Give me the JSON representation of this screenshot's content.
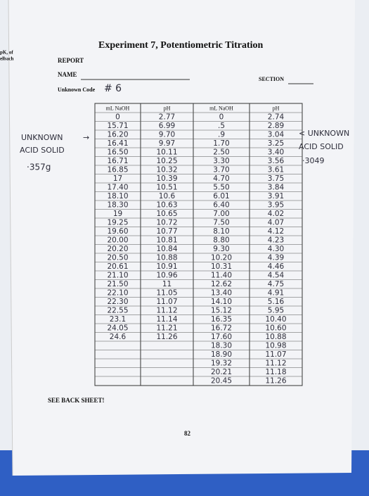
{
  "margin_notes": [
    "pK, of",
    "elbach"
  ],
  "header": {
    "title": "Experiment 7, Potentiometric Titration",
    "report": "REPORT",
    "name_label": "NAME",
    "section_label": "SECTION",
    "unknown_code_label": "Unknown Code",
    "unknown_code": "# 6"
  },
  "left_note": [
    "UNKNOWN",
    "ACID SOLID",
    "·357g"
  ],
  "right_note": [
    "< UNKNOWN",
    "ACID SOLID",
    "·3049"
  ],
  "left_table": {
    "headers": [
      "mL NaOH",
      "pH"
    ],
    "rows": [
      [
        "0",
        "2.77"
      ],
      [
        "15.71",
        "6.99"
      ],
      [
        "16.20",
        "9.70"
      ],
      [
        "16.41",
        "9.97"
      ],
      [
        "16.50",
        "10.11"
      ],
      [
        "16.71",
        "10.25"
      ],
      [
        "16.85",
        "10.32"
      ],
      [
        "17",
        "10.39"
      ],
      [
        "17.40",
        "10.51"
      ],
      [
        "18.10",
        "10.6"
      ],
      [
        "18.30",
        "10.63"
      ],
      [
        "19",
        "10.65"
      ],
      [
        "19.25",
        "10.72"
      ],
      [
        "19.60",
        "10.77"
      ],
      [
        "20.00",
        "10.81"
      ],
      [
        "20.20",
        "10.84"
      ],
      [
        "20.50",
        "10.88"
      ],
      [
        "20.61",
        "10.91"
      ],
      [
        "21.10",
        "10.96"
      ],
      [
        "21.50",
        "11"
      ],
      [
        "22.10",
        "11.05"
      ],
      [
        "22.30",
        "11.07"
      ],
      [
        "22.55",
        "11.12"
      ],
      [
        "23.1",
        "11.14"
      ],
      [
        "24.05",
        "11.21"
      ],
      [
        "24.6",
        "11.26"
      ]
    ]
  },
  "right_table": {
    "headers": [
      "mL NaOH",
      "pH"
    ],
    "rows": [
      [
        "0",
        "2.74"
      ],
      [
        ".5",
        "2.89"
      ],
      [
        ".9",
        "3.04"
      ],
      [
        "1.70",
        "3.25"
      ],
      [
        "2.50",
        "3.40"
      ],
      [
        "3.30",
        "3.56"
      ],
      [
        "3.70",
        "3.61"
      ],
      [
        "4.70",
        "3.75"
      ],
      [
        "5.50",
        "3.84"
      ],
      [
        "6.01",
        "3.91"
      ],
      [
        "6.40",
        "3.95"
      ],
      [
        "7.00",
        "4.02"
      ],
      [
        "7.50",
        "4.07"
      ],
      [
        "8.10",
        "4.12"
      ],
      [
        "8.80",
        "4.23"
      ],
      [
        "9.30",
        "4.30"
      ],
      [
        "10.20",
        "4.39"
      ],
      [
        "10.31",
        "4.46"
      ],
      [
        "11.40",
        "4.54"
      ],
      [
        "12.62",
        "4.75"
      ],
      [
        "13.40",
        "4.91"
      ],
      [
        "14.10",
        "5.16"
      ],
      [
        "15.12",
        "5.95"
      ],
      [
        "16.35",
        "10.40"
      ],
      [
        "16.72",
        "10.60"
      ],
      [
        "17.60",
        "10.88"
      ],
      [
        "18.30",
        "10.98"
      ],
      [
        "18.90",
        "11.07"
      ],
      [
        "19.32",
        "11.12"
      ],
      [
        "20.21",
        "11.18"
      ],
      [
        "20.45",
        "11.26"
      ]
    ]
  },
  "footer": {
    "note": "SEE BACK SHEET!",
    "page": "82"
  }
}
